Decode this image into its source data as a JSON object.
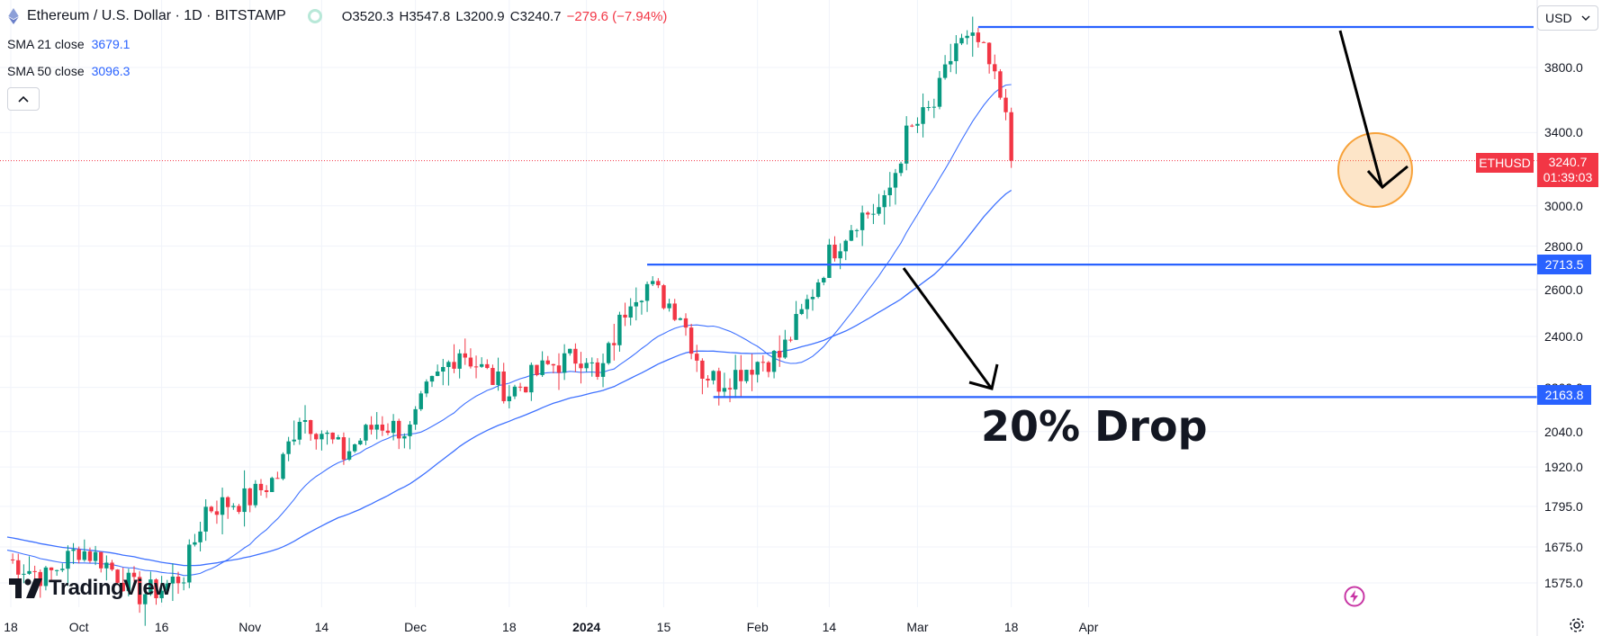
{
  "header": {
    "title": "Ethereum / U.S. Dollar · 1D · BITSTAMP",
    "open": "O3520.3",
    "high": "H3547.8",
    "low": "L3200.9",
    "close": "C3240.7",
    "change": "−279.6 (−7.94%)"
  },
  "indicators": [
    {
      "label": "SMA 21 close",
      "value": "3679.1"
    },
    {
      "label": "SMA 50 close",
      "value": "3096.3"
    }
  ],
  "currency": {
    "label": "USD"
  },
  "price_badge": {
    "symbol": "ETHUSD",
    "price": "3240.7",
    "countdown": "01:39:03",
    "color": "#f23645"
  },
  "level_badges": [
    "2713.5",
    "2163.8"
  ],
  "annotation": {
    "text": "20% Drop"
  },
  "logo": {
    "text": "TradingView"
  },
  "colors": {
    "up": "#089981",
    "down": "#f23645",
    "sma": "#2962ff",
    "level": "#2962ff",
    "circle": "#f7a23a"
  },
  "chart_data": {
    "type": "candlestick",
    "title": "Ethereum / U.S. Dollar · 1D · BITSTAMP",
    "y_axis_ticks": [
      "3800.0",
      "3400.0",
      "3000.0",
      "2800.0",
      "2600.0",
      "2400.0",
      "2200.0",
      "2040.0",
      "1920.0",
      "1795.0",
      "1675.0",
      "1575.0"
    ],
    "y_scale": "log",
    "x_axis_ticks": [
      {
        "label": "18",
        "bold": false
      },
      {
        "label": "Oct",
        "bold": false
      },
      {
        "label": "16",
        "bold": false
      },
      {
        "label": "Nov",
        "bold": false
      },
      {
        "label": "14",
        "bold": false
      },
      {
        "label": "Dec",
        "bold": false
      },
      {
        "label": "18",
        "bold": false
      },
      {
        "label": "2024",
        "bold": true
      },
      {
        "label": "15",
        "bold": false
      },
      {
        "label": "Feb",
        "bold": false
      },
      {
        "label": "14",
        "bold": false
      },
      {
        "label": "Mar",
        "bold": false
      },
      {
        "label": "18",
        "bold": false
      },
      {
        "label": "Apr",
        "bold": false
      }
    ],
    "close_anchors": [
      [
        "2023-09-18",
        1640
      ],
      [
        "2023-09-25",
        1590
      ],
      [
        "2023-10-01",
        1670
      ],
      [
        "2023-10-05",
        1640
      ],
      [
        "2023-10-12",
        1545
      ],
      [
        "2023-10-16",
        1560
      ],
      [
        "2023-10-20",
        1600
      ],
      [
        "2023-10-24",
        1790
      ],
      [
        "2023-11-01",
        1820
      ],
      [
        "2023-11-06",
        1890
      ],
      [
        "2023-11-10",
        2100
      ],
      [
        "2023-11-14",
        2040
      ],
      [
        "2023-11-18",
        1960
      ],
      [
        "2023-11-24",
        2070
      ],
      [
        "2023-11-30",
        2040
      ],
      [
        "2023-12-03",
        2180
      ],
      [
        "2023-12-09",
        2350
      ],
      [
        "2023-12-14",
        2250
      ],
      [
        "2023-12-18",
        2180
      ],
      [
        "2023-12-25",
        2280
      ],
      [
        "2024-01-01",
        2330
      ],
      [
        "2024-01-03",
        2220
      ],
      [
        "2024-01-09",
        2580
      ],
      [
        "2024-01-12",
        2620
      ],
      [
        "2024-01-18",
        2500
      ],
      [
        "2024-01-22",
        2260
      ],
      [
        "2024-01-25",
        2220
      ],
      [
        "2024-02-01",
        2300
      ],
      [
        "2024-02-05",
        2320
      ],
      [
        "2024-02-09",
        2490
      ],
      [
        "2024-02-14",
        2760
      ],
      [
        "2024-02-19",
        2940
      ],
      [
        "2024-02-24",
        3000
      ],
      [
        "2024-02-28",
        3380
      ],
      [
        "2024-03-04",
        3560
      ],
      [
        "2024-03-08",
        3960
      ],
      [
        "2024-03-12",
        3960
      ],
      [
        "2024-03-15",
        3720
      ],
      [
        "2024-03-17",
        3520
      ],
      [
        "2024-03-18",
        3240.7
      ]
    ],
    "last_candle": {
      "date": "2024-03-18",
      "open": 3520.3,
      "high": 3547.8,
      "low": 3200.9,
      "close": 3240.7
    },
    "series": [
      {
        "name": "SMA 21 close",
        "last": 3679.1
      },
      {
        "name": "SMA 50 close",
        "last": 3096.3
      }
    ],
    "horizontal_levels": [
      4100,
      2713.5,
      2163.8
    ],
    "grid": true
  }
}
